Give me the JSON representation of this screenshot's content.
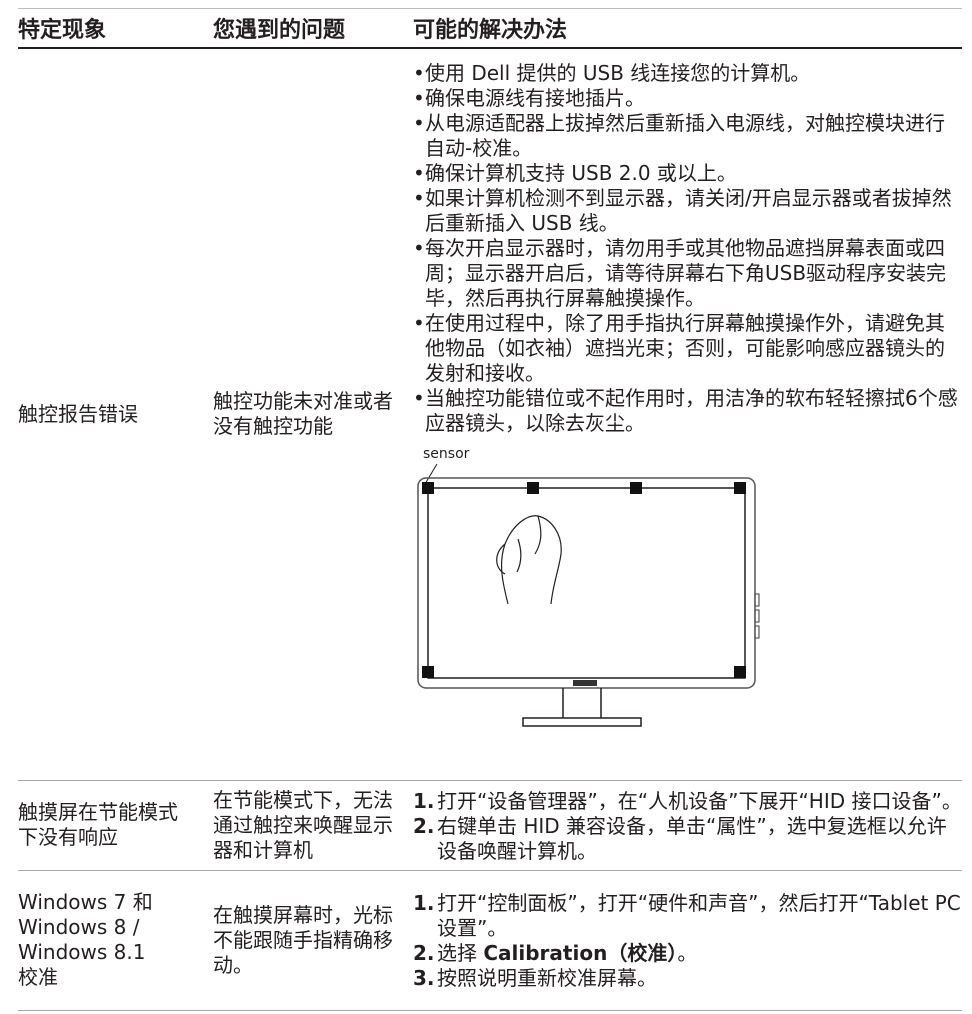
{
  "header": [
    "特定现象",
    "您遇到的问题",
    "可能的解决办法"
  ],
  "rows": [
    {
      "symptom": "触控报告错误",
      "problem": "触控功能未对准或者没有触控功能",
      "solutions": [
        "使用 Dell 提供的 USB 线连接您的计算机。",
        "确保电源线有接地插片。",
        "从电源适配器上拔掉然后重新插入电源线，对触控模块进行自动-校准。",
        "确保计算机支持 USB 2.0 或以上。",
        "如果计算机检测不到显示器，请关闭/开启显示器或者拔掉然后重新插入 USB 线。",
        "每次开启显示器时，请勿用手或其他物品遮挡屏幕表面或四周；显示器开启后，请等待屏幕右下角USB驱动程序安装完毕，然后再执行屏幕触摸操作。",
        " 在使用过程中，除了用手指执行屏幕触摸操作外，请避免其他物品（如衣袖）遮挡光束；否则，可能影响感应器镜头的发射和接收。",
        "当触控功能错位或不起作用时，用洁净的软布轻轻擦拭6个感应器镜头，以除去灰尘。"
      ],
      "figure_label": "sensor"
    },
    {
      "symptom": "触摸屏在节能模式下没有响应",
      "problem": "在节能模式下，无法通过触控来唤醒显示器和计算机",
      "solutions": [
        {
          "number": "1.",
          "text": "打开“设备管理器”，在“人机设备”下展开“HID 接口设备”。"
        },
        {
          "number": "2.",
          "text": "右键单击 HID 兼容设备，单击“属性”，选中复选框以允许设备唤醒计算机。"
        }
      ]
    },
    {
      "symptom": [
        "Windows 7 和",
        "Windows 8 /",
        "Windows 8.1",
        "校准"
      ],
      "problem": "在触摸屏幕时，光标不能跟随手指精确移动。",
      "solutions": [
        {
          "number": "1.",
          "text": "打开“控制面板”，打开“硬件和声音”，然后打开“Tablet PC设置”。"
        },
        {
          "number": "2.",
          "text": "选择 ",
          "bold": "Calibration（校准）",
          "tail": "。"
        },
        {
          "number": "3.",
          "text": "按照说明重新校准屏幕。"
        }
      ]
    }
  ]
}
